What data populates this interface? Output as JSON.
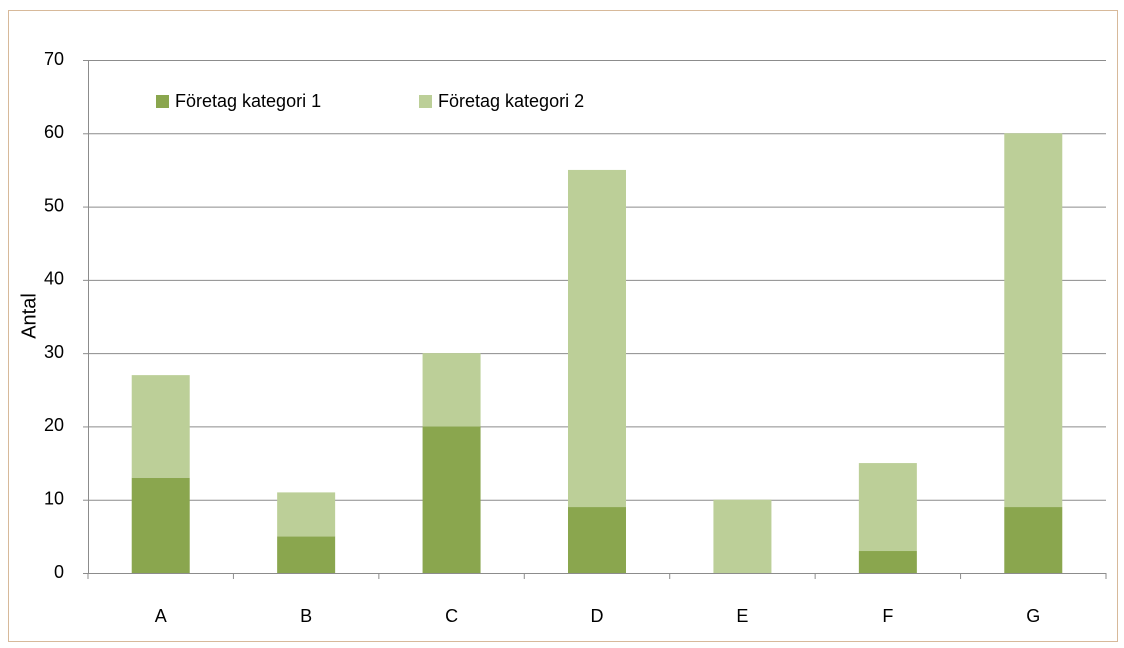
{
  "chart_data": {
    "type": "stacked_bar",
    "y_label": "Antal",
    "categories": [
      "A",
      "B",
      "C",
      "D",
      "E",
      "F",
      "G"
    ],
    "series": [
      {
        "name": "Företag kategori 1",
        "color": "#8aa64e",
        "values": [
          13,
          5,
          20,
          9,
          0,
          3,
          9
        ]
      },
      {
        "name": "Företag kategori 2",
        "color": "#bccf98",
        "values": [
          14,
          6,
          10,
          46,
          10,
          12,
          51
        ]
      }
    ],
    "ylim": [
      0,
      70
    ],
    "yticks": [
      0,
      10,
      20,
      30,
      40,
      50,
      60,
      70
    ],
    "grid": true,
    "legend": "top-left"
  }
}
